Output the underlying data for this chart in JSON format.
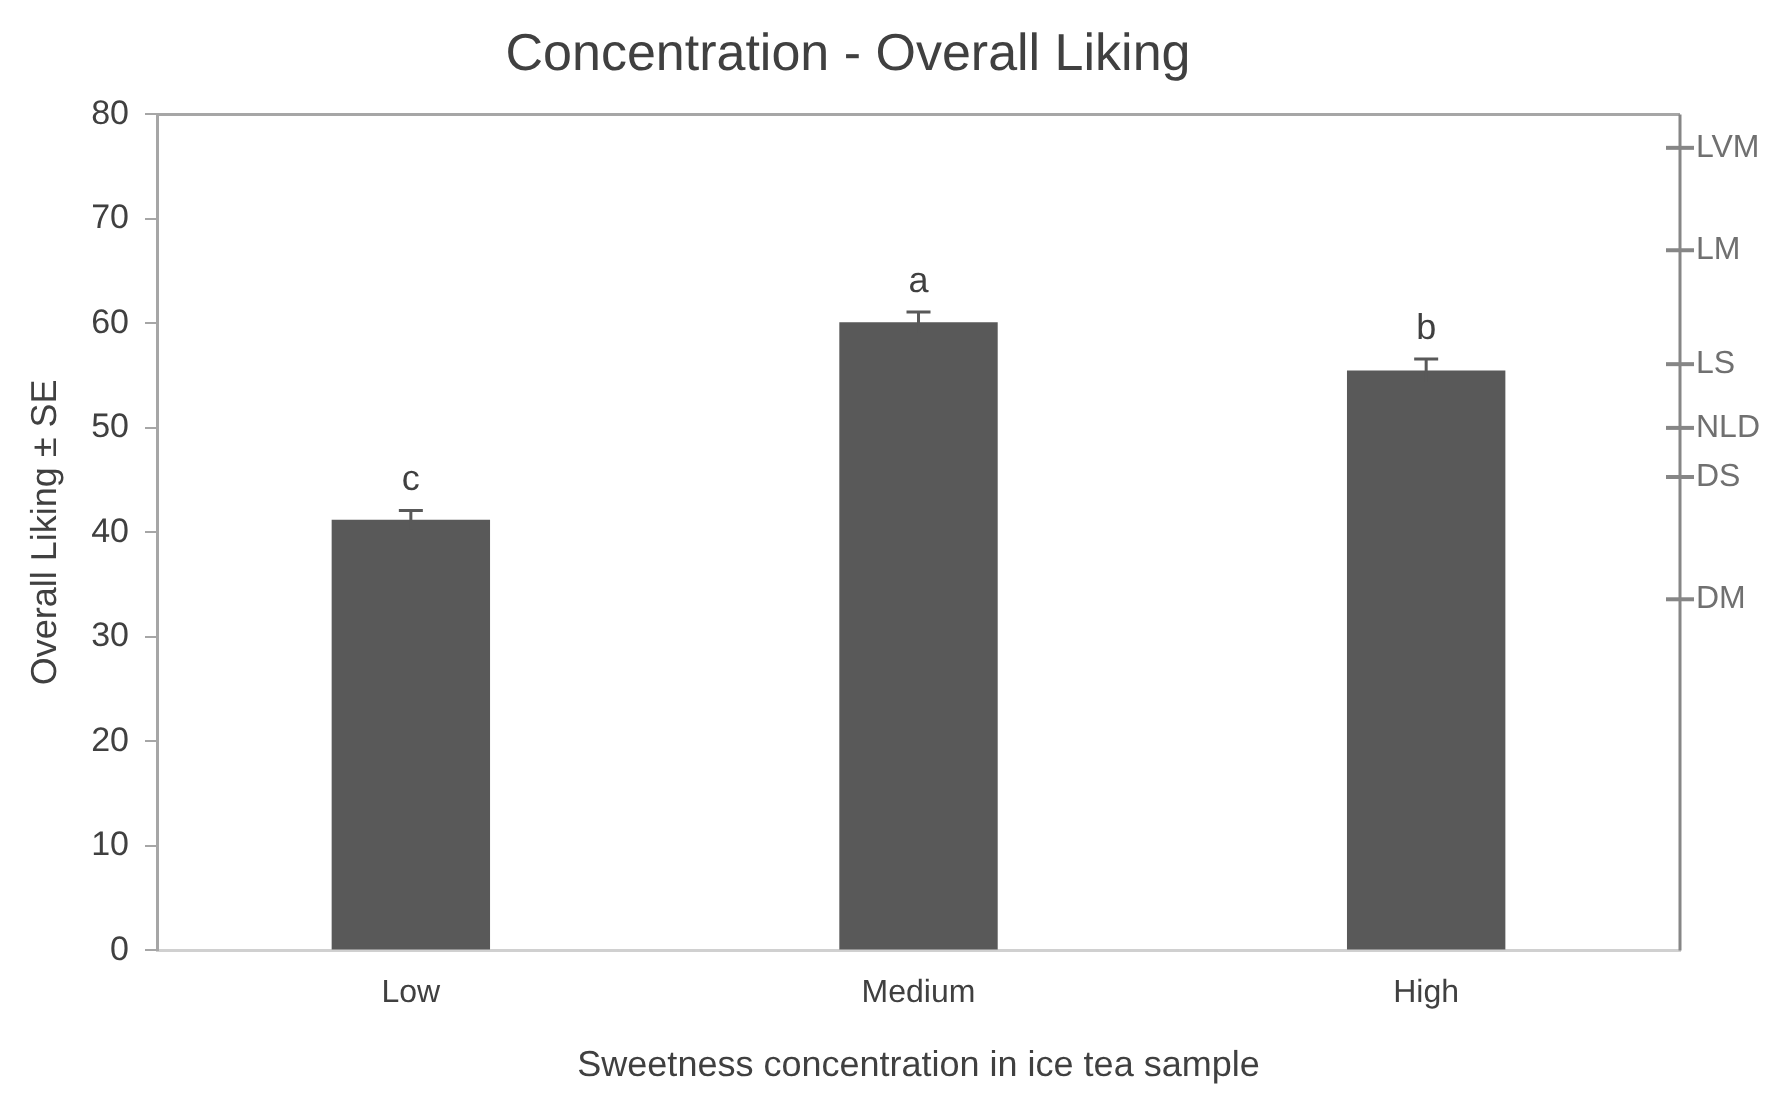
{
  "chart_data": {
    "type": "bar",
    "title": "Concentration - Overall Liking",
    "xlabel": "Sweetness concentration in ice tea sample",
    "ylabel": "Overall Liking ± SE",
    "categories": [
      "Low",
      "Medium",
      "High"
    ],
    "values": [
      41.2,
      60.1,
      55.5
    ],
    "errors": [
      0.9,
      1.0,
      1.1
    ],
    "color": "#595959",
    "ylim": [
      0,
      80
    ],
    "yticks": [
      0,
      10,
      20,
      30,
      40,
      50,
      60,
      70,
      80
    ],
    "ref_lines": [
      {
        "axis": "y",
        "value": 76.8,
        "label": "LVM"
      },
      {
        "axis": "y",
        "value": 67,
        "label": "LM"
      },
      {
        "axis": "y",
        "value": 56.1,
        "label": "LS"
      },
      {
        "axis": "y",
        "value": 50,
        "label": "NLD"
      },
      {
        "axis": "y",
        "value": 45.3,
        "label": "DS"
      },
      {
        "axis": "y",
        "value": 33.6,
        "label": "DM"
      }
    ],
    "annotations": [
      "c",
      "a",
      "b"
    ],
    "grid": false,
    "legend": false
  }
}
